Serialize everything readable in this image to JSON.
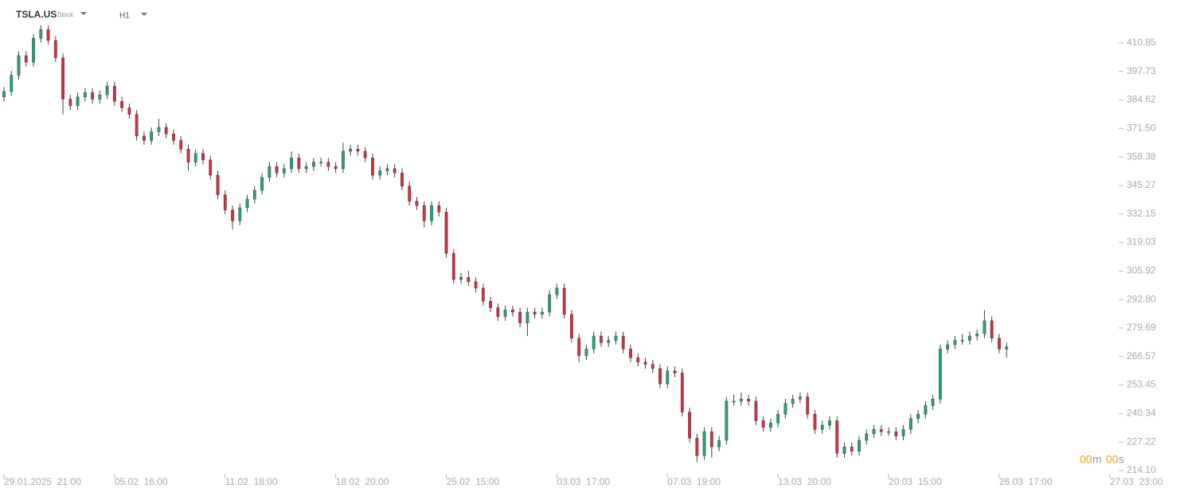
{
  "header": {
    "symbol": "TSLA.US",
    "kind": "Stock",
    "timeframe": "H1"
  },
  "countdown": {
    "minutes": "00",
    "minutes_unit": "m",
    "seconds": "00",
    "seconds_unit": "s"
  },
  "chart_data": {
    "type": "candlestick",
    "up_color": "#26a17b",
    "down_color": "#d3303e",
    "open": [
      386,
      388.5,
      396,
      405,
      402,
      413,
      417,
      412,
      404,
      385,
      382,
      386,
      388,
      385,
      387,
      391,
      384,
      381,
      378,
      368,
      366,
      370,
      372,
      369,
      366,
      362,
      356,
      360,
      357,
      350,
      341,
      334,
      329,
      335,
      339,
      343,
      349,
      354,
      351,
      353,
      358,
      353,
      354,
      356,
      356,
      354,
      353,
      361,
      362,
      361,
      358,
      350,
      352,
      353,
      351,
      345,
      338,
      336,
      329,
      336,
      333,
      314,
      302,
      303,
      301,
      298,
      292,
      289,
      285,
      288,
      287,
      282,
      287,
      286,
      287,
      295,
      298,
      286,
      275,
      267,
      270,
      276,
      273,
      274,
      276,
      270,
      266,
      264,
      263,
      261,
      254,
      260,
      259,
      241,
      229,
      221,
      232,
      225,
      228,
      246,
      246,
      247,
      246,
      237,
      234,
      236,
      240,
      245,
      247,
      248,
      240,
      233,
      235,
      237,
      222,
      225,
      223,
      228,
      231,
      233,
      232,
      232,
      230,
      233,
      238,
      240,
      244,
      247,
      270,
      272,
      274,
      274,
      276,
      277,
      283,
      275,
      270
    ],
    "high": [
      390.5,
      398,
      407,
      407,
      415,
      419,
      419,
      414,
      406,
      387,
      388,
      390,
      390,
      389,
      393,
      393,
      386,
      383,
      380,
      370,
      372,
      376,
      374,
      371,
      368,
      364,
      362,
      362,
      359,
      352,
      343,
      336,
      337,
      341,
      345,
      351,
      356,
      356,
      355,
      361,
      360,
      356,
      358,
      358,
      358,
      356,
      365,
      364,
      364,
      363,
      360,
      354,
      355,
      355,
      353,
      347,
      340,
      338,
      338,
      338,
      335,
      316,
      305,
      306,
      303,
      300,
      294,
      291,
      290,
      290,
      289,
      289,
      289,
      289,
      297,
      300,
      300,
      288,
      277,
      272,
      278,
      278,
      276,
      278,
      278,
      272,
      268,
      266,
      265,
      263,
      262,
      262,
      261,
      243,
      231,
      234,
      234,
      230,
      248,
      249,
      250,
      249,
      248,
      239,
      238,
      242,
      247,
      249,
      250,
      250,
      242,
      237,
      239,
      239,
      227,
      227,
      230,
      233,
      235,
      235,
      234,
      234,
      235,
      240,
      242,
      246,
      249,
      272,
      274,
      276,
      277,
      278,
      279,
      288,
      285,
      277,
      273
    ],
    "low": [
      384,
      386.5,
      394,
      400,
      400,
      411,
      410,
      402,
      378,
      380,
      380,
      384,
      383,
      383,
      385,
      382,
      379,
      376,
      366,
      364,
      364,
      368,
      367,
      364,
      360,
      352,
      354,
      355,
      348,
      339,
      332,
      325,
      327,
      333,
      337,
      341,
      347,
      349,
      349,
      351,
      351,
      351,
      352,
      354,
      352,
      351,
      351,
      359,
      359,
      356,
      348,
      348,
      350,
      349,
      343,
      336,
      334,
      326,
      327,
      331,
      312,
      300,
      300,
      299,
      296,
      290,
      287,
      283,
      283,
      285,
      280,
      276,
      284,
      284,
      285,
      293,
      284,
      273,
      264,
      265,
      268,
      271,
      271,
      272,
      268,
      264,
      262,
      261,
      259,
      252,
      252,
      257,
      239,
      227,
      218,
      219,
      220,
      223,
      226,
      244,
      244,
      244,
      235,
      232,
      232,
      234,
      238,
      243,
      245,
      238,
      231,
      231,
      233,
      220,
      220,
      221,
      221,
      226,
      229,
      230,
      230,
      228,
      228,
      231,
      236,
      238,
      242,
      245,
      268,
      270,
      272,
      272,
      274,
      275,
      273,
      268,
      266
    ],
    "close": [
      388.5,
      396,
      405,
      402,
      413,
      417,
      412,
      404,
      385,
      382,
      386,
      388,
      385,
      387,
      391,
      384,
      381,
      378,
      368,
      366,
      370,
      372,
      369,
      366,
      362,
      356,
      360,
      357,
      350,
      341,
      334,
      329,
      335,
      339,
      343,
      349,
      354,
      351,
      353,
      358,
      353,
      354,
      356,
      356,
      354,
      353,
      361,
      362,
      361,
      358,
      350,
      352,
      353,
      351,
      345,
      338,
      336,
      329,
      336,
      333,
      314,
      302,
      303,
      301,
      298,
      292,
      289,
      285,
      288,
      287,
      282,
      287,
      286,
      287,
      295,
      298,
      286,
      275,
      267,
      270,
      276,
      273,
      274,
      276,
      270,
      266,
      264,
      263,
      261,
      254,
      260,
      259,
      241,
      229,
      221,
      232,
      225,
      228,
      246,
      246,
      247,
      246,
      237,
      234,
      236,
      240,
      245,
      247,
      248,
      240,
      233,
      235,
      237,
      222,
      225,
      223,
      228,
      231,
      233,
      232,
      232,
      230,
      233,
      238,
      240,
      244,
      247,
      270,
      272,
      274,
      274,
      276,
      277,
      283,
      275,
      270,
      271
    ],
    "xlim": [
      -0.54,
      151.1
    ],
    "xticks": [
      {
        "value": 0,
        "label": "29.01.2025  21:00"
      },
      {
        "value": 15,
        "label": "05.02  16:00"
      },
      {
        "value": 30,
        "label": "11.02  18:00"
      },
      {
        "value": 45,
        "label": "18.02  20:00"
      },
      {
        "value": 60,
        "label": "25.02  15:00"
      },
      {
        "value": 75,
        "label": "03.03  17:00"
      },
      {
        "value": 90,
        "label": "07.03  19:00"
      },
      {
        "value": 105,
        "label": "13.03  20:00"
      },
      {
        "value": 120,
        "label": "20.03  15:00"
      },
      {
        "value": 135,
        "label": "26.03  17:00"
      },
      {
        "value": 150,
        "label": "27.03  23:00"
      }
    ],
    "ylim": [
      210.8,
      430.6
    ],
    "yticks": [
      410.85,
      397.73,
      384.62,
      {
        "value": 371.5,
        "label": "371.50"
      },
      358.38,
      345.27,
      332.15,
      319.03,
      305.92,
      {
        "value": 292.8,
        "label": "292.80"
      },
      279.69,
      266.57,
      253.45,
      240.34,
      227.22,
      {
        "value": 214.1,
        "label": "214.10"
      }
    ]
  }
}
